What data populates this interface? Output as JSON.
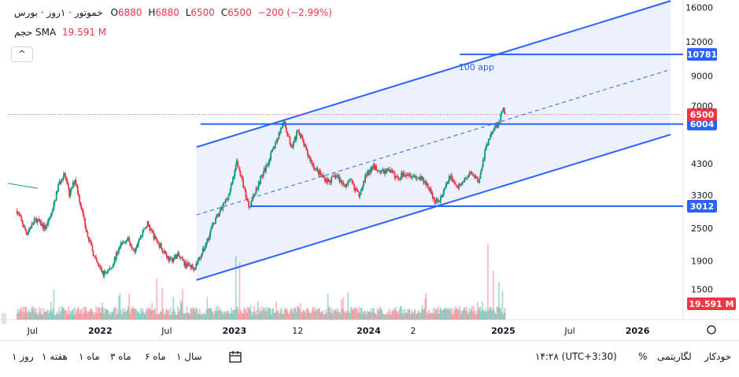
{
  "legend": {
    "symbol": "خموتور",
    "interval": "۱روز",
    "exchange": "بورس",
    "ohlc": {
      "o": "6880",
      "h": "6880",
      "l": "6500",
      "c": "6500"
    },
    "change": "−200 (−2.99%)",
    "volume_label": "حجم",
    "sma_label": "SMA",
    "volume_value": "19.591 M"
  },
  "collapse_label": "^",
  "chart_data": {
    "type": "candlestick",
    "yscale": "log",
    "ylim": [
      1250,
      17600
    ],
    "y_ticks": [
      1500,
      1900,
      2500,
      3300,
      4300,
      6000,
      7000,
      9000,
      12000,
      16000
    ],
    "y_tick_labels": [
      "1500",
      "1900",
      "2500",
      "3300",
      "4300",
      "",
      "7000",
      "9000",
      "12000",
      "16000"
    ],
    "x_tick_labels": [
      "Jul",
      "2022",
      "Jul",
      "2023",
      "12",
      "2024",
      "2",
      "2025",
      "Jul",
      "2026"
    ],
    "price_path": [
      [
        "2021-05-20",
        2900
      ],
      [
        "2021-06-15",
        2400
      ],
      [
        "2021-07-10",
        2700
      ],
      [
        "2021-08-05",
        2500
      ],
      [
        "2021-08-25",
        2900
      ],
      [
        "2021-09-10",
        3600
      ],
      [
        "2021-09-25",
        4000
      ],
      [
        "2021-10-10",
        3300
      ],
      [
        "2021-10-25",
        3800
      ],
      [
        "2021-11-10",
        3000
      ],
      [
        "2021-12-01",
        2300
      ],
      [
        "2021-12-20",
        1900
      ],
      [
        "2022-01-10",
        1700
      ],
      [
        "2022-02-01",
        1800
      ],
      [
        "2022-02-20",
        2100
      ],
      [
        "2022-03-15",
        2300
      ],
      [
        "2022-04-05",
        2100
      ],
      [
        "2022-04-25",
        2400
      ],
      [
        "2022-05-10",
        2600
      ],
      [
        "2022-05-30",
        2300
      ],
      [
        "2022-06-20",
        2100
      ],
      [
        "2022-07-10",
        1900
      ],
      [
        "2022-07-30",
        2000
      ],
      [
        "2022-08-20",
        1850
      ],
      [
        "2022-09-15",
        1800
      ],
      [
        "2022-10-10",
        2100
      ],
      [
        "2022-11-05",
        2600
      ],
      [
        "2022-11-25",
        2900
      ],
      [
        "2022-12-20",
        3400
      ],
      [
        "2023-01-08",
        4400
      ],
      [
        "2023-01-25",
        3600
      ],
      [
        "2023-02-10",
        3000
      ],
      [
        "2023-03-10",
        3700
      ],
      [
        "2023-04-01",
        4300
      ],
      [
        "2023-04-25",
        5200
      ],
      [
        "2023-05-15",
        6100
      ],
      [
        "2023-06-05",
        5000
      ],
      [
        "2023-06-25",
        5700
      ],
      [
        "2023-07-15",
        4800
      ],
      [
        "2023-08-05",
        4200
      ],
      [
        "2023-08-25",
        3900
      ],
      [
        "2023-09-15",
        3700
      ],
      [
        "2023-10-05",
        3900
      ],
      [
        "2023-10-25",
        3600
      ],
      [
        "2023-11-15",
        3700
      ],
      [
        "2023-12-05",
        3300
      ],
      [
        "2023-12-25",
        3900
      ],
      [
        "2024-01-15",
        4200
      ],
      [
        "2024-02-05",
        4000
      ],
      [
        "2024-02-25",
        4100
      ],
      [
        "2024-03-20",
        3800
      ],
      [
        "2024-04-10",
        4000
      ],
      [
        "2024-04-30",
        3900
      ],
      [
        "2024-05-20",
        3800
      ],
      [
        "2024-06-10",
        3600
      ],
      [
        "2024-06-30",
        3100
      ],
      [
        "2024-07-20",
        3300
      ],
      [
        "2024-08-10",
        3900
      ],
      [
        "2024-08-30",
        3500
      ],
      [
        "2024-09-20",
        3800
      ],
      [
        "2024-10-10",
        4000
      ],
      [
        "2024-10-25",
        3700
      ],
      [
        "2024-11-15",
        4900
      ],
      [
        "2024-12-05",
        5800
      ],
      [
        "2024-12-20",
        6100
      ],
      [
        "2025-01-02",
        6880
      ],
      [
        "2025-01-07",
        6500
      ]
    ],
    "volume": {
      "last": "19.591 M",
      "spikes": [
        [
          "2022-06-05",
          0.55
        ],
        [
          "2023-01-05",
          0.85
        ],
        [
          "2023-01-15",
          0.6
        ],
        [
          "2024-11-20",
          1.0
        ],
        [
          "2024-12-05",
          0.65
        ],
        [
          "2024-12-20",
          0.5
        ]
      ]
    },
    "channel": {
      "upper": [
        [
          "2022-09-20",
          4950
        ],
        [
          "2026-04-01",
          16900
        ]
      ],
      "middle": [
        [
          "2022-09-20",
          2800
        ],
        [
          "2026-04-01",
          9500
        ]
      ],
      "lower": [
        [
          "2022-09-20",
          1620
        ],
        [
          "2026-04-01",
          5500
        ]
      ],
      "fill": "#dfe4fb",
      "line_color": "#2962ff"
    },
    "horizontal_lines": [
      {
        "price": 10781,
        "from": "2024-09-05",
        "label": "10781"
      },
      {
        "price": 6004,
        "from": "2022-10-01",
        "label": "6004"
      },
      {
        "price": 3012,
        "from": "2023-02-15",
        "label": "3012"
      }
    ],
    "current_price": {
      "price": 6500,
      "label": "6500",
      "color": "#f23645"
    },
    "annotation": {
      "text": "100 app",
      "date": "2024-10-20",
      "price": 9700
    },
    "colors": {
      "up": "#089981",
      "down": "#f23645",
      "line": "#2962ff"
    }
  },
  "bottom_bar": {
    "periods": [
      "۱ روز",
      "۱ هفته",
      "۱ ماه",
      "۳ ماه",
      "۶ ماه",
      "۱ سال"
    ],
    "time": "۱۴:۲۸ (UTC+3:30)",
    "percent": "%",
    "log": "لگاریتمی",
    "auto": "خودکار"
  }
}
